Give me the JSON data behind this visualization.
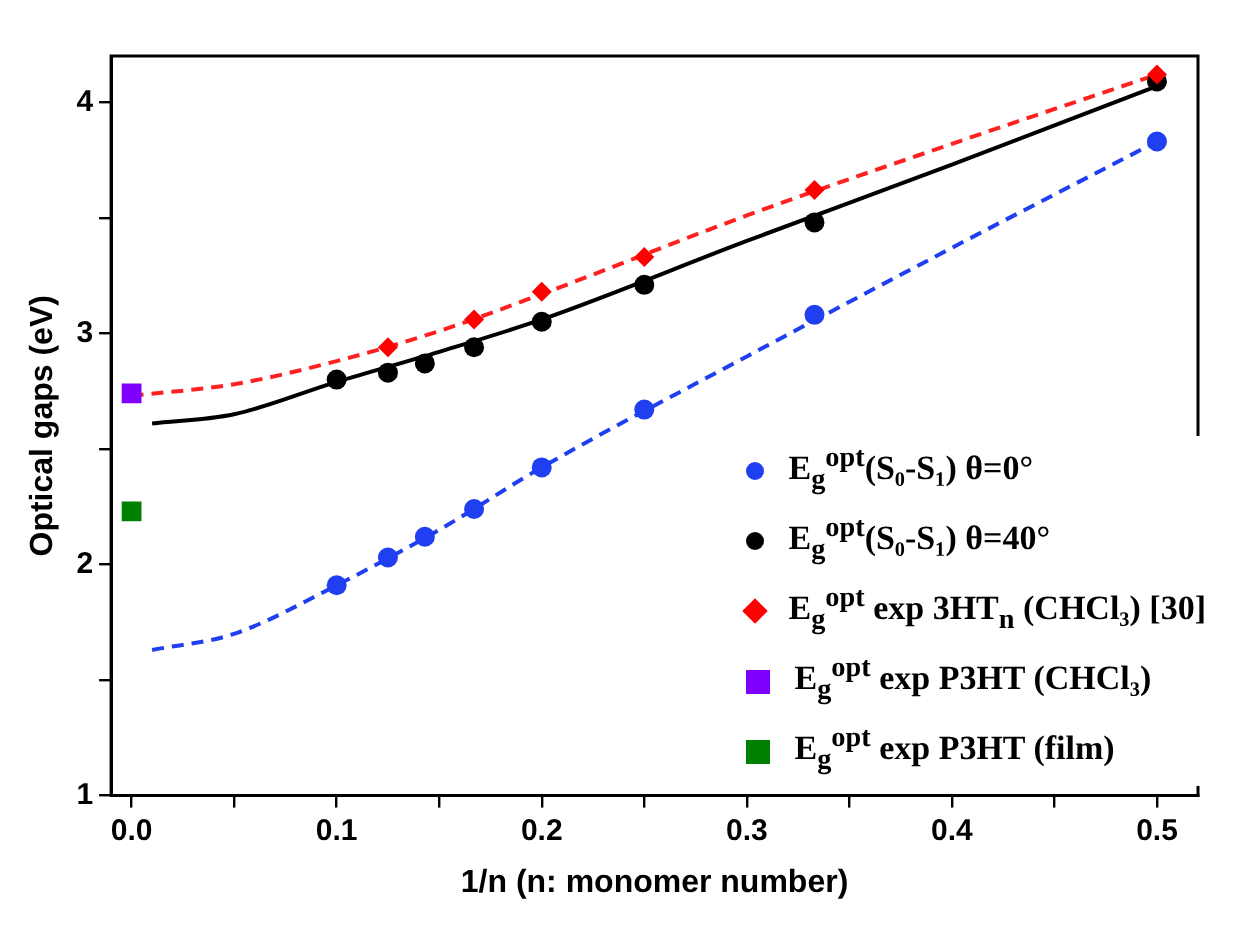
{
  "chart_data": {
    "type": "scatter",
    "xlabel": "1/n (n: monomer number)",
    "ylabel": "Optical gaps (eV)",
    "xlim": [
      -0.01,
      0.52
    ],
    "ylim": [
      1,
      4.2
    ],
    "xticks": [
      {
        "value": 0,
        "label": "0.0"
      },
      {
        "value": 0.05,
        "label": null
      },
      0.1,
      {
        "value": 0.15,
        "label": null
      },
      0.2,
      {
        "value": 0.25,
        "label": null
      },
      0.3,
      {
        "value": 0.35,
        "label": null
      },
      0.4,
      {
        "value": 0.45,
        "label": null
      },
      0.5
    ],
    "yticks": [
      1,
      {
        "value": 1.5,
        "label": null
      },
      2,
      {
        "value": 2.5,
        "label": null
      },
      3,
      {
        "value": 3.5,
        "label": null
      },
      4
    ],
    "grid": false,
    "legend": "bottom right",
    "series": [
      {
        "type": "line",
        "color": "#1f3ff0",
        "line_style": "dashed",
        "marker": "none",
        "x": [
          0.01,
          0.05,
          0.1,
          0.15,
          0.2,
          0.3,
          0.4,
          0.5
        ],
        "values": [
          1.63,
          1.7,
          1.91,
          2.15,
          2.42,
          2.9,
          3.37,
          3.83
        ]
      },
      {
        "type": "line",
        "color": "#000000",
        "line_style": "solid",
        "marker": "none",
        "x": [
          0.01,
          0.05,
          0.1,
          0.15,
          0.2,
          0.3,
          0.4,
          0.5
        ],
        "values": [
          2.61,
          2.65,
          2.79,
          2.92,
          3.06,
          3.4,
          3.73,
          4.07
        ]
      },
      {
        "type": "line",
        "color": "#ff2020",
        "line_style": "dashed",
        "marker": "none",
        "x": [
          0,
          0.05,
          0.1,
          0.15,
          0.2,
          0.3,
          0.4,
          0.5
        ],
        "values": [
          2.73,
          2.78,
          2.88,
          3.01,
          3.17,
          3.51,
          3.82,
          4.12
        ]
      },
      {
        "name": "E$_{g}$$^{opt}$(S₀-S₁) θ=0°",
        "color": "#1f3ff0",
        "marker": "circle",
        "x": [
          0.1,
          0.125,
          0.143,
          0.167,
          0.2,
          0.25,
          0.333,
          0.5
        ],
        "values": [
          1.91,
          2.03,
          2.12,
          2.24,
          2.42,
          2.67,
          3.08,
          3.83
        ]
      },
      {
        "name": "E$_{g}$$^{opt}$(S₀-S₁) θ=40°",
        "color": "#000000",
        "marker": "circle",
        "x": [
          0.1,
          0.125,
          0.143,
          0.167,
          0.2,
          0.25,
          0.333,
          0.5
        ],
        "values": [
          2.8,
          2.83,
          2.87,
          2.94,
          3.05,
          3.21,
          3.48,
          4.09
        ]
      },
      {
        "name": "E$_{g}$$^{opt}$ exp 3HT$_{n}$ (CHCl₃) [30]",
        "color": "#ff0000",
        "marker": "diamond",
        "x": [
          0.125,
          0.167,
          0.2,
          0.25,
          0.333,
          0.5
        ],
        "values": [
          2.94,
          3.06,
          3.18,
          3.33,
          3.62,
          4.12
        ]
      },
      {
        "name": "E$_{g}$$^{opt}$ exp P3HT (CHCl₃)",
        "color": "#8000ff",
        "marker": "square",
        "x": [
          0
        ],
        "values": [
          2.74
        ]
      },
      {
        "name": "E$_{g}$$^{opt}$ exp P3HT (film)",
        "color": "#008000",
        "marker": "square",
        "x": [
          0
        ],
        "values": [
          2.23
        ]
      }
    ]
  }
}
